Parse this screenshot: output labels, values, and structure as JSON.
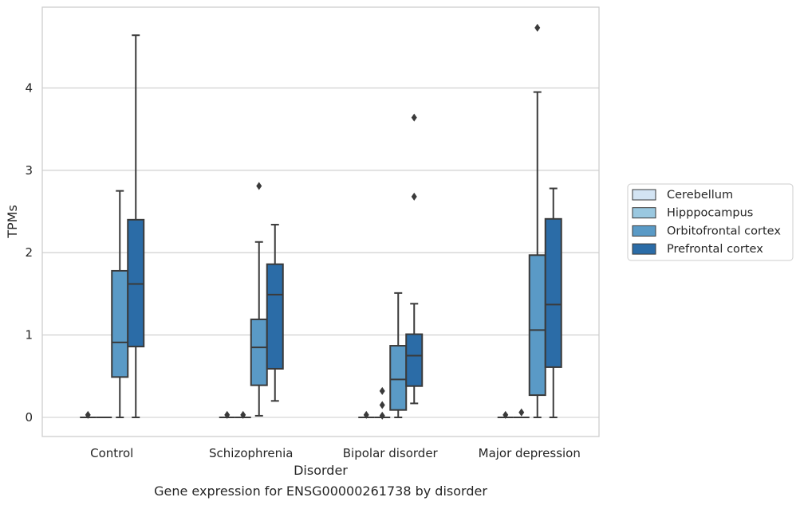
{
  "caption": "Gene expression for ENSG00000261738 by disorder",
  "chart_data": {
    "type": "box",
    "xlabel": "Disorder",
    "ylabel": "TPMs",
    "ylim": [
      -0.23,
      4.9
    ],
    "yticks": [
      0,
      1,
      2,
      3,
      4
    ],
    "grid": "horizontal",
    "legend_position": "right",
    "categories": [
      "Control",
      "Schizophrenia",
      "Bipolar disorder",
      "Major depression"
    ],
    "series": [
      {
        "name": "Cerebellum",
        "color": "#d3e4f3",
        "boxes": [
          {
            "q1": 0,
            "median": 0,
            "q3": 0,
            "whisker_low": 0,
            "whisker_high": 0,
            "outliers": [
              0.03
            ]
          },
          {
            "q1": 0,
            "median": 0,
            "q3": 0,
            "whisker_low": 0,
            "whisker_high": 0,
            "outliers": [
              0.03
            ]
          },
          {
            "q1": 0,
            "median": 0,
            "q3": 0,
            "whisker_low": 0,
            "whisker_high": 0,
            "outliers": [
              0.03
            ]
          },
          {
            "q1": 0,
            "median": 0,
            "q3": 0,
            "whisker_low": 0,
            "whisker_high": 0,
            "outliers": [
              0.03
            ]
          }
        ]
      },
      {
        "name": "Hipppocampus",
        "color": "#9ac8e0",
        "boxes": [
          {
            "q1": 0,
            "median": 0,
            "q3": 0,
            "whisker_low": 0,
            "whisker_high": 0,
            "outliers": []
          },
          {
            "q1": 0,
            "median": 0,
            "q3": 0,
            "whisker_low": 0,
            "whisker_high": 0,
            "outliers": [
              0.03
            ]
          },
          {
            "q1": 0,
            "median": 0,
            "q3": 0,
            "whisker_low": 0,
            "whisker_high": 0,
            "outliers": [
              0.02,
              0.15,
              0.32
            ]
          },
          {
            "q1": 0,
            "median": 0,
            "q3": 0,
            "whisker_low": 0,
            "whisker_high": 0,
            "outliers": [
              0.06
            ]
          }
        ]
      },
      {
        "name": "Orbitofrontal cortex",
        "color": "#5a9ac6",
        "boxes": [
          {
            "q1": 0.49,
            "median": 0.91,
            "q3": 1.78,
            "whisker_low": 0,
            "whisker_high": 2.75,
            "outliers": []
          },
          {
            "q1": 0.39,
            "median": 0.85,
            "q3": 1.19,
            "whisker_low": 0.02,
            "whisker_high": 2.13,
            "outliers": [
              2.81
            ]
          },
          {
            "q1": 0.09,
            "median": 0.46,
            "q3": 0.87,
            "whisker_low": 0,
            "whisker_high": 1.51,
            "outliers": []
          },
          {
            "q1": 0.27,
            "median": 1.06,
            "q3": 1.97,
            "whisker_low": 0,
            "whisker_high": 3.95,
            "outliers": [
              4.73
            ]
          }
        ]
      },
      {
        "name": "Prefrontal cortex",
        "color": "#2b6ca7",
        "boxes": [
          {
            "q1": 0.86,
            "median": 1.62,
            "q3": 2.4,
            "whisker_low": 0,
            "whisker_high": 4.64,
            "outliers": []
          },
          {
            "q1": 0.59,
            "median": 1.49,
            "q3": 1.86,
            "whisker_low": 0.2,
            "whisker_high": 2.34,
            "outliers": []
          },
          {
            "q1": 0.38,
            "median": 0.75,
            "q3": 1.01,
            "whisker_low": 0.17,
            "whisker_high": 1.38,
            "outliers": [
              2.68,
              3.64
            ]
          },
          {
            "q1": 0.61,
            "median": 1.37,
            "q3": 2.41,
            "whisker_low": 0,
            "whisker_high": 2.78,
            "outliers": []
          }
        ]
      }
    ]
  }
}
